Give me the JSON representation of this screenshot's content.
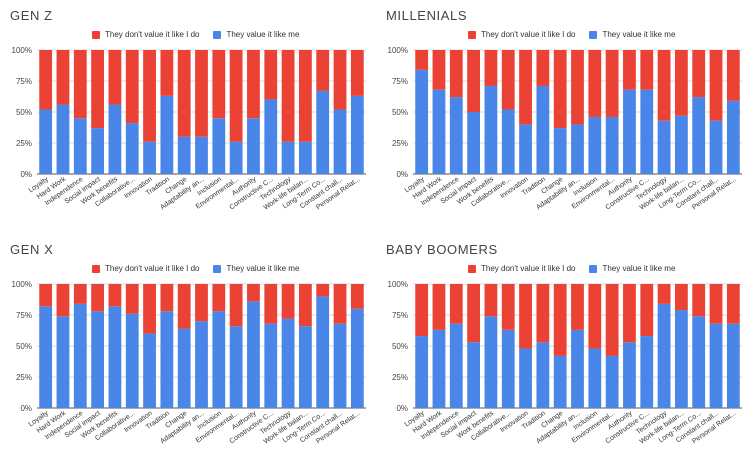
{
  "colors": {
    "red": "#EA4335",
    "blue": "#4A86E8",
    "grid": "#d9d9d9",
    "axis": "#555555"
  },
  "legend": {
    "red_label": "They don't value it like I do",
    "blue_label": "They value it like me"
  },
  "chart_data": [
    {
      "type": "bar",
      "stacked": true,
      "percent": true,
      "title": "GEN Z",
      "categories": [
        "Loyalty",
        "Hard Work",
        "Independence",
        "Social impact",
        "Work benefits",
        "Collaborative...",
        "Innovation",
        "Tradition",
        "Change",
        "Adaptability an...",
        "Inclusion",
        "Environmental...",
        "Authority",
        "Constructive C...",
        "Technology",
        "Work-life balan...",
        "Long-Term Co...",
        "Constant chall...",
        "Personal Relat..."
      ],
      "yticks": [
        "0%",
        "25%",
        "50%",
        "75%",
        "100%"
      ],
      "ylim": [
        0,
        100
      ],
      "series": [
        {
          "name": "They value it like me",
          "values": [
            52,
            56,
            45,
            37,
            56,
            41,
            26,
            63,
            30,
            30,
            45,
            26,
            45,
            60,
            26,
            26,
            67,
            52,
            63
          ]
        },
        {
          "name": "They don't value it like I do",
          "values": [
            48,
            44,
            55,
            63,
            44,
            59,
            74,
            37,
            70,
            70,
            55,
            74,
            55,
            40,
            74,
            74,
            33,
            48,
            37
          ]
        }
      ],
      "legend_position": "top"
    },
    {
      "type": "bar",
      "stacked": true,
      "percent": true,
      "title": "MILLENIALS",
      "categories": [
        "Loyalty",
        "Hard Work",
        "Independence",
        "Social impact",
        "Work benefits",
        "Collaborative...",
        "Innovation",
        "Tradition",
        "Change",
        "Adaptability an...",
        "Inclusion",
        "Environmental...",
        "Authority",
        "Constructive C...",
        "Technology",
        "Work-life balan...",
        "Long-Term Co...",
        "Constant chall...",
        "Personal Relat..."
      ],
      "yticks": [
        "0%",
        "25%",
        "50%",
        "75%",
        "100%"
      ],
      "ylim": [
        0,
        100
      ],
      "series": [
        {
          "name": "They value it like me",
          "values": [
            84,
            68,
            62,
            50,
            71,
            52,
            40,
            71,
            37,
            40,
            46,
            46,
            68,
            68,
            43,
            47,
            62,
            43,
            59
          ]
        },
        {
          "name": "They don't value it like I do",
          "values": [
            16,
            32,
            38,
            50,
            29,
            48,
            60,
            29,
            63,
            60,
            54,
            54,
            32,
            32,
            57,
            53,
            38,
            57,
            41
          ]
        }
      ],
      "legend_position": "top"
    },
    {
      "type": "bar",
      "stacked": true,
      "percent": true,
      "title": "GEN X",
      "categories": [
        "Loyalty",
        "Hard Work",
        "Independence",
        "Social impact",
        "Work benefits",
        "Collaborative...",
        "Innovation",
        "Tradition",
        "Change",
        "Adaptability an...",
        "Inclusion",
        "Environmental...",
        "Authority",
        "Constructive C...",
        "Technology",
        "Work-life balan...",
        "Long-Term Co...",
        "Constant chall...",
        "Personal Relat..."
      ],
      "yticks": [
        "0%",
        "25%",
        "50%",
        "75%",
        "100%"
      ],
      "ylim": [
        0,
        100
      ],
      "series": [
        {
          "name": "They value it like me",
          "values": [
            82,
            74,
            84,
            78,
            82,
            76,
            60,
            78,
            64,
            70,
            78,
            66,
            86,
            68,
            72,
            66,
            90,
            68,
            80
          ]
        },
        {
          "name": "They don't value it like I do",
          "values": [
            18,
            26,
            16,
            22,
            18,
            24,
            40,
            22,
            36,
            30,
            22,
            34,
            14,
            32,
            28,
            34,
            10,
            32,
            20
          ]
        }
      ],
      "legend_position": "top"
    },
    {
      "type": "bar",
      "stacked": true,
      "percent": true,
      "title": "BABY BOOMERS",
      "categories": [
        "Loyalty",
        "Hard Work",
        "Independence",
        "Social impact",
        "Work benefits",
        "Collaborative...",
        "Innovation",
        "Tradition",
        "Change",
        "Adaptability an...",
        "Inclusion",
        "Environmental...",
        "Authority",
        "Constructive C...",
        "Technology",
        "Work-life balan...",
        "Long-Term Co...",
        "Constant chall...",
        "Personal Relat..."
      ],
      "yticks": [
        "0%",
        "25%",
        "50%",
        "75%",
        "100%"
      ],
      "ylim": [
        0,
        100
      ],
      "series": [
        {
          "name": "They value it like me",
          "values": [
            58,
            63,
            68,
            53,
            74,
            63,
            48,
            53,
            42,
            63,
            48,
            42,
            53,
            58,
            84,
            79,
            74,
            68,
            68
          ]
        },
        {
          "name": "They don't value it like I do",
          "values": [
            42,
            37,
            32,
            47,
            26,
            37,
            52,
            47,
            58,
            37,
            52,
            58,
            47,
            42,
            16,
            21,
            26,
            32,
            32
          ]
        }
      ],
      "legend_position": "top"
    }
  ]
}
